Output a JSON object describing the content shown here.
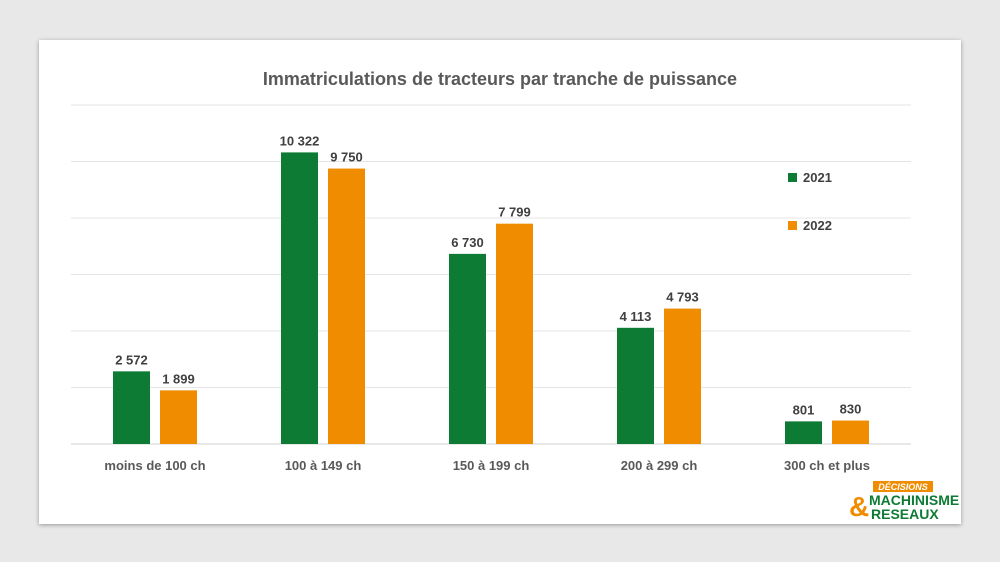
{
  "chart_data": {
    "type": "bar",
    "title": "Immatriculations de tracteurs par tranche de puissance",
    "categories": [
      "moins de 100 ch",
      "100 à 149 ch",
      "150 à 199 ch",
      "200 à 299 ch",
      "300 ch et plus"
    ],
    "series": [
      {
        "name": "2021",
        "values": [
          2572,
          10322,
          6730,
          4113,
          801
        ],
        "labels": [
          "2 572",
          "10 322",
          "6 730",
          "4 113",
          "801"
        ],
        "color": "#0e7b34"
      },
      {
        "name": "2022",
        "values": [
          1899,
          9750,
          7799,
          4793,
          830
        ],
        "labels": [
          "1 899",
          "9 750",
          "7 799",
          "4 793",
          "830"
        ],
        "color": "#f08c00"
      }
    ],
    "ylim": [
      0,
      12000
    ],
    "grid": true,
    "legend_position": "right"
  },
  "logo": {
    "line1": "DÉCISIONS",
    "line2": "MACHINISME",
    "line3": "RESEAUX",
    "colors": {
      "orange": "#f08c00",
      "green": "#0e7b34"
    }
  }
}
